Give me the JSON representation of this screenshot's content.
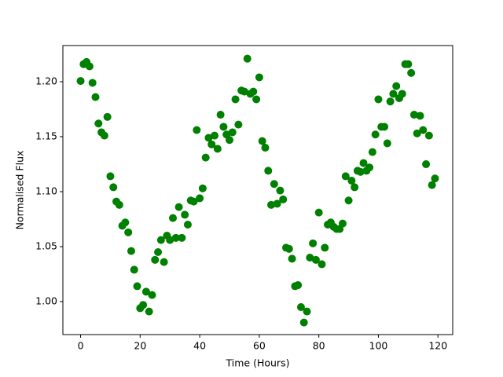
{
  "chart_data": {
    "type": "scatter",
    "x_label": "Time (Hours)",
    "y_label": "Normalised Flux",
    "color": "#008000",
    "x": [
      0,
      1,
      2,
      3,
      4,
      5,
      6,
      7,
      8,
      9,
      10,
      11,
      12,
      13,
      14,
      15,
      16,
      17,
      18,
      19,
      20,
      21,
      22,
      23,
      24,
      25,
      26,
      27,
      28,
      29,
      30,
      31,
      32,
      33,
      34,
      35,
      36,
      37,
      38,
      39,
      40,
      41,
      42,
      43,
      44,
      45,
      46,
      47,
      48,
      49,
      50,
      51,
      52,
      53,
      54,
      55,
      56,
      57,
      58,
      59,
      60,
      61,
      62,
      63,
      64,
      65,
      66,
      67,
      68,
      69,
      70,
      71,
      72,
      73,
      74,
      75,
      76,
      77,
      78,
      79,
      80,
      81,
      82,
      83,
      84,
      85,
      86,
      87,
      88,
      89,
      90,
      91,
      92,
      93,
      94,
      95,
      96,
      97,
      98,
      99,
      100,
      101,
      102,
      103,
      104,
      105,
      106,
      107,
      108,
      109,
      110,
      111,
      112,
      113,
      114,
      115,
      116,
      117,
      118,
      119
    ],
    "values": [
      1.2007,
      1.216,
      1.218,
      1.214,
      1.199,
      1.186,
      1.162,
      1.154,
      1.151,
      1.168,
      1.114,
      1.104,
      1.091,
      1.088,
      1.069,
      1.072,
      1.063,
      1.046,
      1.029,
      1.014,
      0.994,
      0.997,
      1.009,
      0.991,
      1.006,
      1.038,
      1.045,
      1.056,
      1.036,
      1.06,
      1.056,
      1.076,
      1.058,
      1.086,
      1.058,
      1.079,
      1.07,
      1.092,
      1.091,
      1.156,
      1.094,
      1.103,
      1.131,
      1.149,
      1.143,
      1.151,
      1.139,
      1.17,
      1.159,
      1.152,
      1.147,
      1.154,
      1.184,
      1.161,
      1.192,
      1.191,
      1.221,
      1.189,
      1.191,
      1.184,
      1.204,
      1.146,
      1.14,
      1.119,
      1.088,
      1.107,
      1.089,
      1.101,
      1.093,
      1.049,
      1.048,
      1.039,
      1.014,
      1.015,
      0.995,
      0.981,
      0.991,
      1.04,
      1.053,
      1.038,
      1.081,
      1.034,
      1.049,
      1.07,
      1.072,
      1.068,
      1.066,
      1.066,
      1.071,
      1.114,
      1.092,
      1.11,
      1.104,
      1.119,
      1.118,
      1.126,
      1.119,
      1.122,
      1.136,
      1.152,
      1.184,
      1.159,
      1.159,
      1.144,
      1.182,
      1.189,
      1.196,
      1.185,
      1.189,
      1.216,
      1.216,
      1.208,
      1.17,
      1.153,
      1.169,
      1.156,
      1.125,
      1.151,
      1.106,
      1.112
    ],
    "xlim": [
      -5.95,
      124.95
    ],
    "xticks": [
      0,
      20,
      40,
      60,
      80,
      100,
      120
    ],
    "ylim": [
      0.97,
      1.2329
    ],
    "yticks": [
      {
        "value": 1.0,
        "label": "1.00"
      },
      {
        "value": 1.05,
        "label": "1.05"
      },
      {
        "value": 1.1,
        "label": "1.10"
      },
      {
        "value": 1.15,
        "label": "1.15"
      },
      {
        "value": 1.2,
        "label": "1.20"
      }
    ]
  }
}
